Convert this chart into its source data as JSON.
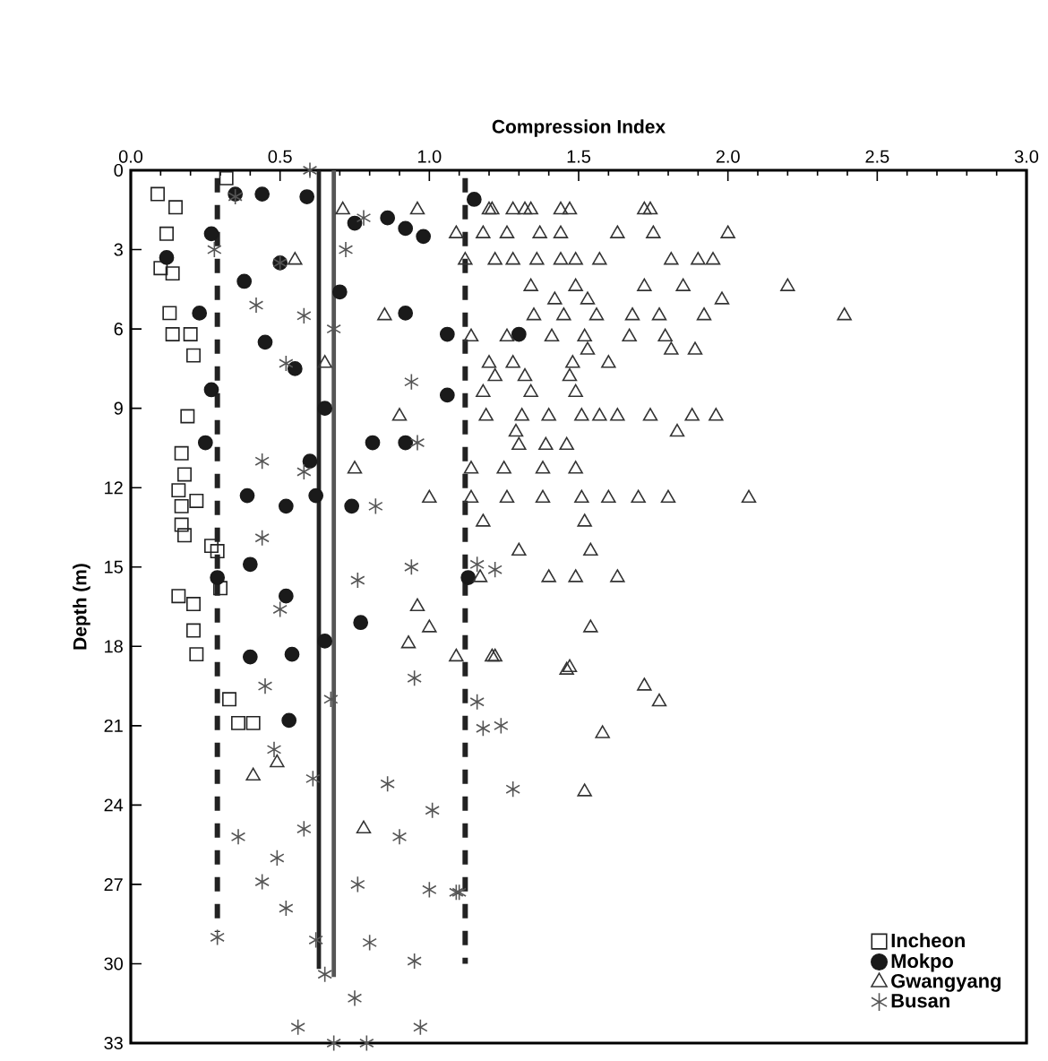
{
  "chart_data": {
    "type": "scatter",
    "xlabel": "Compression Index",
    "ylabel": "Depth (m)",
    "xlim": [
      0,
      3
    ],
    "ylim": [
      33,
      0
    ],
    "xticks": [
      {
        "value": 0,
        "label": "0.0"
      },
      0.5,
      {
        "value": 1,
        "label": "1.0"
      },
      1.5,
      {
        "value": 2,
        "label": "2.0"
      },
      2.5,
      {
        "value": 3,
        "label": "3.0"
      }
    ],
    "yticks": [
      0,
      3,
      6,
      9,
      12,
      15,
      18,
      21,
      24,
      27,
      30,
      33
    ],
    "legend": "bottom right",
    "grid": false,
    "series": [
      {
        "name": "Incheon",
        "marker": "square",
        "color": "#222222",
        "x": [
          0.09,
          0.15,
          0.32,
          0.12,
          0.1,
          0.14,
          0.13,
          0.14,
          0.2,
          0.21,
          0.19,
          0.17,
          0.18,
          0.16,
          0.22,
          0.17,
          0.17,
          0.18,
          0.27,
          0.29,
          0.16,
          0.21,
          0.3,
          0.21,
          0.22,
          0.33,
          0.36,
          0.41
        ],
        "values": [
          0.9,
          1.4,
          0.3,
          2.4,
          3.7,
          3.9,
          5.4,
          6.2,
          6.2,
          7.0,
          9.3,
          10.7,
          11.5,
          12.1,
          12.5,
          13.4,
          12.7,
          13.8,
          14.2,
          14.4,
          16.1,
          16.4,
          15.8,
          17.4,
          18.3,
          20.0,
          20.9,
          20.9
        ]
      },
      {
        "name": "Mokpo",
        "marker": "circle",
        "color": "#1a1a1a",
        "x": [
          0.35,
          0.44,
          0.59,
          1.15,
          0.86,
          0.92,
          0.27,
          0.12,
          0.38,
          0.92,
          0.23,
          1.06,
          1.3,
          0.27,
          1.06,
          0.25,
          0.81,
          0.92,
          0.39,
          0.52,
          0.62,
          0.74,
          0.29,
          0.4,
          0.52,
          1.13,
          0.4,
          0.54,
          0.53,
          0.65,
          0.77,
          0.5,
          0.45,
          0.55,
          0.65,
          0.7,
          0.75,
          0.6,
          0.98
        ],
        "values": [
          0.9,
          0.9,
          1.0,
          1.1,
          1.8,
          2.2,
          2.4,
          3.3,
          4.2,
          5.4,
          5.4,
          6.2,
          6.2,
          8.3,
          8.5,
          10.3,
          10.3,
          10.3,
          12.3,
          12.7,
          12.3,
          12.7,
          15.4,
          14.9,
          16.1,
          15.4,
          18.4,
          18.3,
          20.8,
          17.8,
          17.1,
          3.5,
          6.5,
          7.5,
          9.0,
          4.6,
          2.0,
          11.0,
          2.5
        ]
      },
      {
        "name": "Gwangyang",
        "marker": "triangle",
        "color": "#333333",
        "x": [
          1.21,
          1.28,
          1.34,
          1.47,
          1.72,
          1.74,
          1.09,
          1.18,
          1.26,
          1.37,
          1.44,
          1.63,
          1.75,
          2.0,
          1.12,
          1.22,
          1.28,
          1.36,
          1.44,
          1.49,
          1.57,
          1.81,
          1.9,
          1.95,
          1.34,
          1.49,
          1.72,
          1.85,
          2.2,
          1.42,
          1.53,
          1.98,
          1.35,
          1.45,
          1.56,
          1.68,
          1.77,
          1.92,
          2.39,
          1.14,
          1.26,
          1.41,
          1.52,
          1.67,
          1.79,
          1.53,
          1.81,
          1.89,
          1.2,
          1.28,
          1.48,
          1.6,
          1.22,
          1.32,
          1.47,
          1.18,
          1.34,
          1.49,
          1.19,
          1.31,
          1.4,
          1.51,
          1.57,
          1.63,
          1.74,
          1.88,
          1.96,
          1.29,
          1.83,
          1.3,
          1.39,
          1.46,
          1.14,
          1.25,
          1.38,
          1.49,
          1.14,
          1.26,
          1.38,
          1.51,
          1.6,
          1.7,
          1.8,
          2.07,
          1.18,
          1.52,
          1.3,
          1.54,
          1.17,
          1.4,
          1.49,
          1.63,
          1.54,
          1.21,
          1.47,
          1.72,
          1.77,
          1.58,
          1.52,
          0.71,
          0.96,
          1.2,
          1.32,
          1.44,
          0.96,
          1.0,
          0.93,
          1.09,
          1.22,
          1.46,
          0.41,
          0.49,
          0.78,
          0.55,
          0.85,
          0.65,
          0.9,
          0.75,
          1.0
        ],
        "values": [
          1.5,
          1.5,
          1.5,
          1.5,
          1.5,
          1.5,
          2.4,
          2.4,
          2.4,
          2.4,
          2.4,
          2.4,
          2.4,
          2.4,
          3.4,
          3.4,
          3.4,
          3.4,
          3.4,
          3.4,
          3.4,
          3.4,
          3.4,
          3.4,
          4.4,
          4.4,
          4.4,
          4.4,
          4.4,
          4.9,
          4.9,
          4.9,
          5.5,
          5.5,
          5.5,
          5.5,
          5.5,
          5.5,
          5.5,
          6.3,
          6.3,
          6.3,
          6.3,
          6.3,
          6.3,
          6.8,
          6.8,
          6.8,
          7.3,
          7.3,
          7.3,
          7.3,
          7.8,
          7.8,
          7.8,
          8.4,
          8.4,
          8.4,
          9.3,
          9.3,
          9.3,
          9.3,
          9.3,
          9.3,
          9.3,
          9.3,
          9.3,
          9.9,
          9.9,
          10.4,
          10.4,
          10.4,
          11.3,
          11.3,
          11.3,
          11.3,
          12.4,
          12.4,
          12.4,
          12.4,
          12.4,
          12.4,
          12.4,
          12.4,
          13.3,
          13.3,
          14.4,
          14.4,
          15.4,
          15.4,
          15.4,
          15.4,
          17.3,
          18.4,
          18.8,
          19.5,
          20.1,
          21.3,
          23.5,
          1.5,
          1.5,
          1.5,
          1.5,
          1.5,
          16.5,
          17.3,
          17.9,
          18.4,
          18.4,
          18.9,
          22.9,
          22.4,
          24.9,
          3.4,
          5.5,
          7.3,
          9.3,
          11.3,
          12.4
        ]
      },
      {
        "name": "Busan",
        "marker": "cross",
        "color": "#555555",
        "x": [
          0.6,
          0.35,
          0.78,
          0.28,
          0.5,
          0.72,
          0.42,
          0.58,
          0.68,
          0.52,
          0.94,
          0.96,
          0.44,
          0.58,
          0.82,
          0.44,
          0.76,
          0.94,
          1.16,
          1.24,
          1.28,
          1.18,
          0.5,
          0.45,
          0.67,
          0.95,
          0.48,
          0.61,
          0.86,
          1.01,
          0.36,
          0.58,
          0.9,
          0.49,
          0.44,
          0.52,
          0.76,
          1.0,
          1.1,
          0.29,
          0.62,
          0.8,
          0.95,
          0.65,
          0.75,
          0.56,
          0.97,
          0.68,
          0.79,
          1.22,
          1.16,
          1.09
        ],
        "values": [
          0.0,
          1.0,
          1.8,
          3.0,
          3.5,
          3.0,
          5.1,
          5.5,
          6.0,
          7.3,
          8.0,
          10.3,
          11.0,
          11.4,
          12.7,
          13.9,
          15.5,
          15.0,
          20.1,
          21.0,
          23.4,
          21.1,
          16.6,
          19.5,
          20.0,
          19.2,
          21.9,
          23.0,
          23.2,
          24.2,
          25.2,
          24.9,
          25.2,
          26.0,
          26.9,
          27.9,
          27.0,
          27.2,
          27.3,
          29.0,
          29.1,
          29.2,
          29.9,
          30.4,
          31.3,
          32.4,
          32.4,
          33.0,
          33.0,
          15.1,
          14.9,
          27.3
        ]
      },
      {
        "type": "line",
        "marker": "none",
        "line_style": "dashed",
        "color": "#222222",
        "x": [
          0.29,
          0.29
        ],
        "values": [
          0.3,
          28.8
        ]
      },
      {
        "type": "line",
        "marker": "none",
        "line_style": "solid",
        "color": "#222222",
        "x": [
          0.63,
          0.63
        ],
        "values": [
          0.0,
          30.2
        ]
      },
      {
        "type": "line",
        "marker": "none",
        "line_style": "solid",
        "color": "#555555",
        "x": [
          0.68,
          0.68
        ],
        "values": [
          0.0,
          30.5
        ]
      },
      {
        "type": "line",
        "marker": "none",
        "line_style": "dashed",
        "color": "#222222",
        "x": [
          1.12,
          1.12
        ],
        "values": [
          0.3,
          30.0
        ]
      }
    ]
  }
}
